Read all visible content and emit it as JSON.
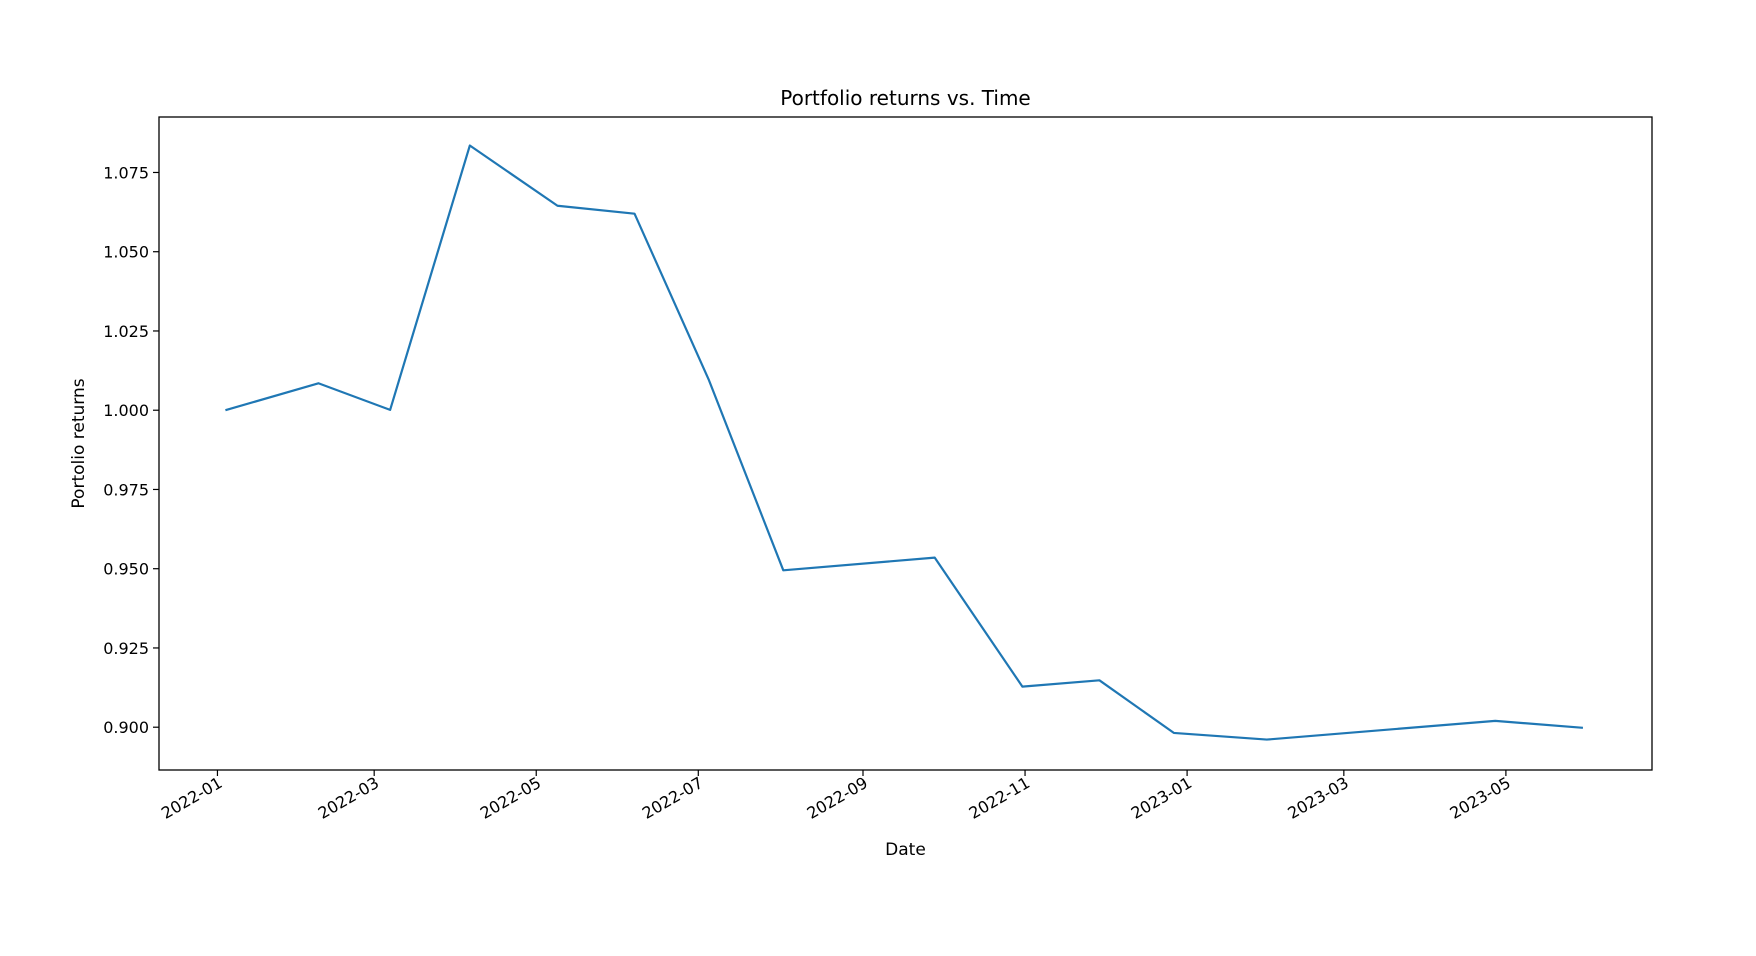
{
  "chart_data": {
    "type": "line",
    "title": "Portfolio returns vs. Time",
    "xlabel": "Date",
    "ylabel": "Portolio returns",
    "grid": false,
    "legend": "none",
    "line_color": "#1f77b4",
    "xlim": [
      "2021-12-10",
      "2023-06-25"
    ],
    "ylim": [
      0.8865,
      1.0925
    ],
    "x_ticks": [
      "2022-01",
      "2022-03",
      "2022-05",
      "2022-07",
      "2022-09",
      "2022-11",
      "2023-01",
      "2023-03",
      "2023-05"
    ],
    "y_ticks": [
      "0.900",
      "0.925",
      "0.950",
      "0.975",
      "1.000",
      "1.025",
      "1.050",
      "1.075"
    ],
    "series": [
      {
        "x": [
          "2022-01-04",
          "2022-02-08",
          "2022-03-07",
          "2022-04-06",
          "2022-05-09",
          "2022-06-07",
          "2022-07-05",
          "2022-08-02",
          "2022-09-28",
          "2022-10-31",
          "2022-11-29",
          "2022-12-27",
          "2023-01-31",
          "2023-04-27",
          "2023-05-30"
        ],
        "y": [
          1.0,
          1.0085,
          1.0001,
          1.0835,
          1.0645,
          1.062,
          1.0095,
          0.9495,
          0.9535,
          0.9128,
          0.9148,
          0.8982,
          0.8961,
          0.902,
          0.8998
        ]
      }
    ]
  }
}
